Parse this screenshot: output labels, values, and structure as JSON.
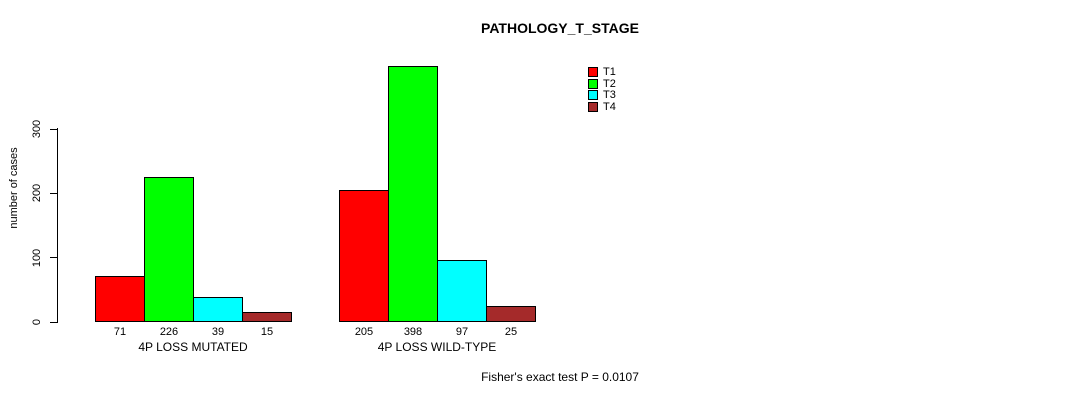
{
  "chart_data": {
    "type": "bar",
    "title": "PATHOLOGY_T_STAGE",
    "ylabel": "number of cases",
    "xlabel": "",
    "annotation": "Fisher's exact test P = 0.0107",
    "ylim": [
      0,
      300
    ],
    "yticks": [
      0,
      100,
      200,
      300
    ],
    "grid": false,
    "legend_position": "top-right",
    "categories": [
      "4P LOSS MUTATED",
      "4P LOSS WILD-TYPE"
    ],
    "series": [
      {
        "name": "T1",
        "color": "#ff0000",
        "values": [
          71,
          205
        ]
      },
      {
        "name": "T2",
        "color": "#00ff00",
        "values": [
          226,
          398
        ]
      },
      {
        "name": "T3",
        "color": "#00ffff",
        "values": [
          39,
          97
        ]
      },
      {
        "name": "T4",
        "color": "#a52a2a",
        "values": [
          15,
          25
        ]
      }
    ]
  }
}
